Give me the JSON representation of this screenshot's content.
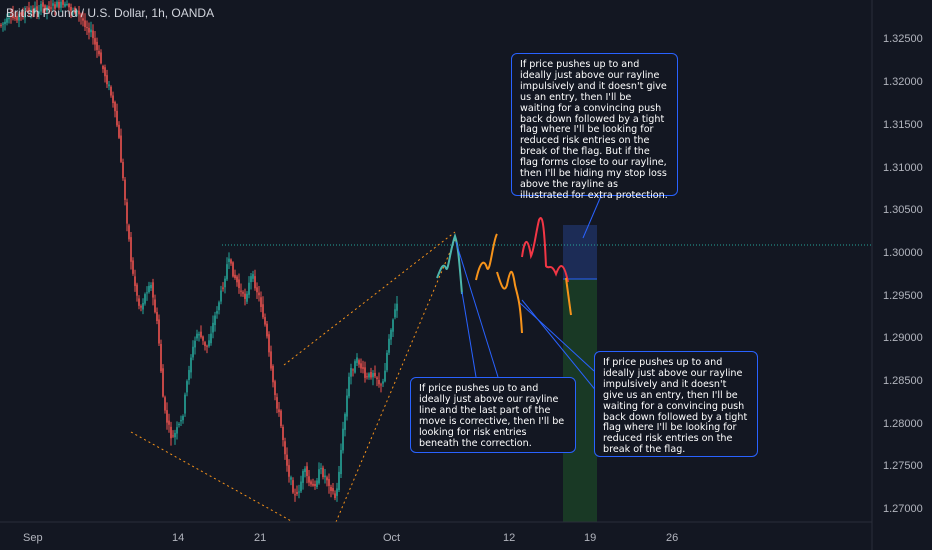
{
  "symbol_title": "British Pound / U.S. Dollar, 1h, OANDA",
  "y_axis": {
    "ticks": [
      "1.32500",
      "1.32000",
      "1.31500",
      "1.31000",
      "1.30500",
      "1.30000",
      "1.29500",
      "1.29000",
      "1.28500",
      "1.28000",
      "1.27500",
      "1.27000"
    ],
    "dotted_level_color": "#26a69a"
  },
  "x_axis": {
    "ticks": [
      "Sep",
      "14",
      "21",
      "Oct",
      "12",
      "19",
      "26"
    ]
  },
  "annotations": {
    "top": "If price pushes up to and ideally just above our rayline impulsively and it doesn't give us an entry, then I'll be waiting for a convincing push back down followed by a tight flag where I'll be looking for reduced risk entries on the break of the flag. But if the flag forms close to our rayline, then I'll be hiding my stop loss above the rayline as illustrated for extra protection.",
    "left": "If price pushes up to and ideally just above our rayline line and the last part of the move is corrective, then I'll be looking for risk entries beneath the correction.",
    "right": "If price pushes up to and ideally just above our rayline impulsively and it doesn't give us an entry, then I'll be waiting for a convincing push back down followed by a tight flag where I'll be looking for reduced risk entries on the break of the flag."
  },
  "colors": {
    "background": "#131722",
    "up_candle": "#26a69a",
    "down_candle": "#ef5350",
    "projection_orange": "#f7931a",
    "projection_red": "#f23645",
    "projection_teal": "#4db6ac",
    "callout_border": "#2962ff",
    "stop_zone": "#1e2f5c",
    "target_zone": "#1b3d26"
  }
}
